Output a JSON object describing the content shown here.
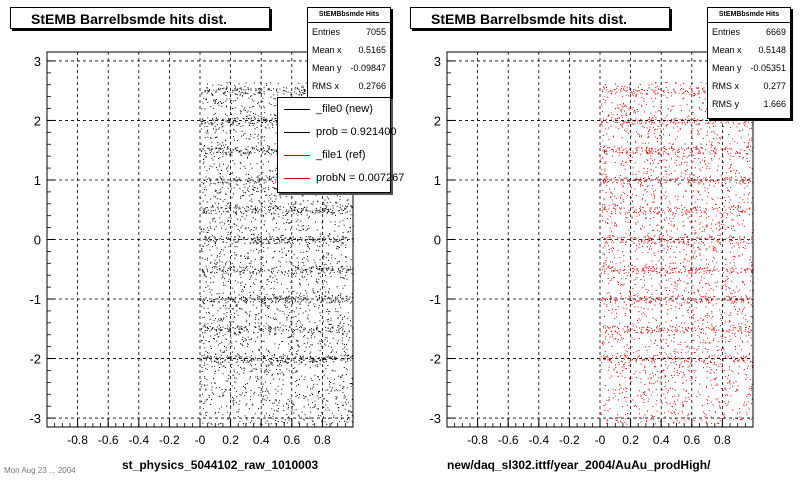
{
  "chart_data": [
    {
      "type": "scatter",
      "title": "StEMB Barrelbsmde hits dist.",
      "xlabel": "st_physics_5044102_raw_1010003",
      "ylabel": "",
      "xlim": [
        -1,
        1
      ],
      "ylim": [
        -3.15,
        3.15
      ],
      "x_ticks": [
        "-0.8",
        "-0.6",
        "-0.4",
        "-0.2",
        "-0",
        "0.2",
        "0.4",
        "0.6",
        "0.8"
      ],
      "y_ticks": [
        "3",
        "2",
        "1",
        "0",
        "-1",
        "-2",
        "-3"
      ],
      "grid": true,
      "marker_color": "#000000",
      "points_shown": 4200,
      "x_range_of_points": [
        0.0,
        1.0
      ],
      "stats": {
        "header": "StEMBbsmde Hits",
        "rows": [
          {
            "label": "Entries",
            "value": "7055"
          },
          {
            "label": "Mean x",
            "value": "0.5165"
          },
          {
            "label": "Mean y",
            "value": "-0.09847"
          },
          {
            "label": "RMS x",
            "value": "0.2766"
          }
        ]
      },
      "legend": [
        {
          "label": "_file0 (new)",
          "color": "#000000"
        },
        {
          "label": "prob = 0.921400",
          "color": "#000000"
        },
        {
          "label": "_file1 (ref)",
          "color": "#cc0000"
        },
        {
          "label": "probN = 0.007267",
          "color": "#cc0000"
        }
      ]
    },
    {
      "type": "scatter",
      "title": "StEMB Barrelbsmde hits dist.",
      "xlabel": "new/daq_sl302.ittf/year_2004/AuAu_prodHigh/",
      "ylabel": "",
      "xlim": [
        -1,
        1
      ],
      "ylim": [
        -3.15,
        3.15
      ],
      "x_ticks": [
        "-0.8",
        "-0.6",
        "-0.4",
        "-0.2",
        "-0",
        "0.2",
        "0.4",
        "0.6",
        "0.8"
      ],
      "y_ticks": [
        "3",
        "2",
        "1",
        "0",
        "-1",
        "-2",
        "-3"
      ],
      "grid": true,
      "marker_color": "#cc0000",
      "points_shown": 3600,
      "x_range_of_points": [
        0.0,
        1.0
      ],
      "stats": {
        "header": "StEMBbsmde Hits",
        "rows": [
          {
            "label": "Entries",
            "value": "6669"
          },
          {
            "label": "Mean x",
            "value": "0.5148"
          },
          {
            "label": "Mean y",
            "value": "-0.05351"
          },
          {
            "label": "RMS x",
            "value": "0.277"
          },
          {
            "label": "RMS y",
            "value": "1.666"
          }
        ]
      }
    }
  ],
  "footer_stamp": "Mon Aug 23 ... 2004"
}
